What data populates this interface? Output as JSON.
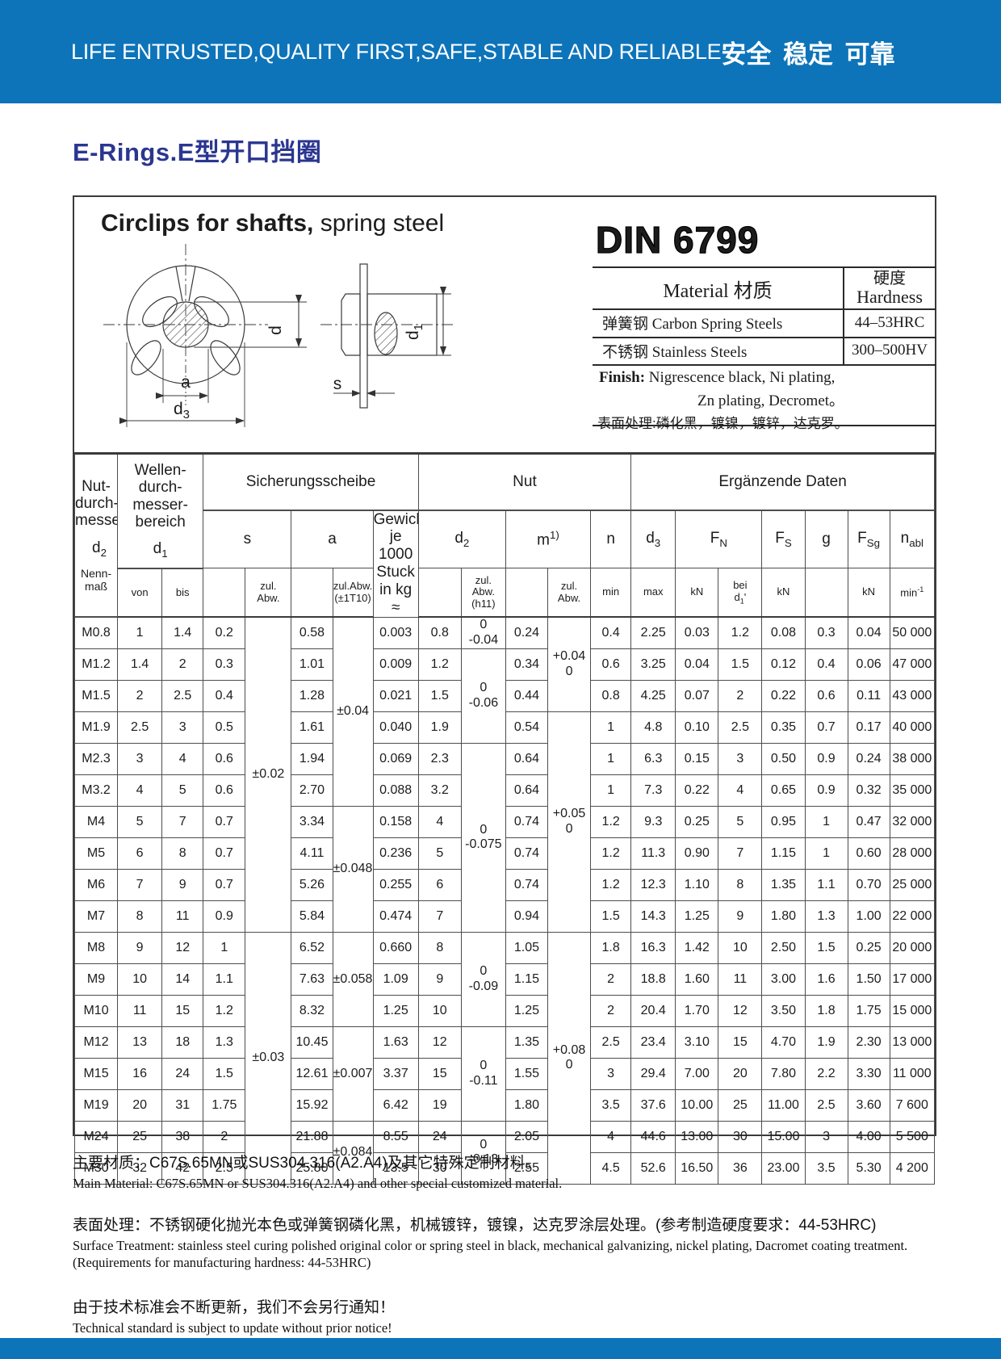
{
  "banner": {
    "slogan_en": "LIFE ENTRUSTED,QUALITY FIRST,SAFE,STABLE AND RELIABLE",
    "slogan_cn": "安全  稳定  可靠"
  },
  "page_title": "E-Rings.E型开口挡圈",
  "colors": {
    "banner_blue": "#0d74ba",
    "title_blue": "#2b3690"
  },
  "panel": {
    "heading_bold": "Circlips for shafts,",
    "heading_light": " spring steel",
    "standard": "DIN 6799",
    "material": {
      "col1_header": "Material  材质",
      "col2_header_cn": "硬度",
      "col2_header_en": "Hardness",
      "rows": [
        [
          "弹簧钢  Carbon Spring  Steels",
          "44–53HRC"
        ],
        [
          "不锈钢 Stainless Steels",
          "300–500HV"
        ]
      ],
      "finish_label": "Finish:",
      "finish_line1": " Nigrescence black,   Ni plating,",
      "finish_line2": "Zn plating,   Decromet。",
      "finish_line3": "表面处理:磷化黑，镀镍，镀锌，达克罗。"
    },
    "drawing": {
      "d": "d",
      "a": "a",
      "s": "s",
      "d3_base": "d",
      "d3_sub": "3",
      "d1_base": "d",
      "d1_sub": "1"
    }
  },
  "table": {
    "col0": {
      "group": "Nut-\ndurch-\nmesser",
      "symbol": "d~2~",
      "unit": "Nenn-\nmaß"
    },
    "col12": {
      "group": "Wellen-\ndurch-\nmesser-\nbereich",
      "symbol": "d~1~"
    },
    "groups": [
      "Sicherungsscheibe",
      "Nut",
      "Ergänzende Daten"
    ],
    "symbols": [
      "s",
      "a",
      "Gewicht\nje  1000\nStuck\nin kg\n≈",
      "d~2~",
      "m^1)^",
      "n",
      "d~3~",
      "F~N~",
      "F~S~",
      "g",
      "F~Sg~",
      "n~abl~"
    ],
    "units": [
      "von",
      "bis",
      "",
      "zul.\nAbw.",
      "",
      "zul.Abw.\n(±1T10)",
      "",
      "zul.\nAbw.\n(h11)",
      "",
      "zul.\nAbw.",
      "min",
      "max",
      "kN",
      "bei\nd~1~'",
      "kN",
      "",
      "kN",
      "min^-1^"
    ],
    "rows": [
      [
        "M0.8",
        "1",
        "1.4",
        "0.2",
        "±0.02",
        "0.58",
        "±0.04",
        "0.003",
        "0.8",
        "0\n-0.04",
        "0.24",
        "+0.04\n0",
        "0.4",
        "2.25",
        "0.03",
        "1.2",
        "0.08",
        "0.3",
        "0.04",
        "50 000"
      ],
      [
        "M1.2",
        "1.4",
        "2",
        "0.3",
        null,
        "1.01",
        null,
        "0.009",
        "1.2",
        "0\n-0.06",
        "0.34",
        null,
        "0.6",
        "3.25",
        "0.04",
        "1.5",
        "0.12",
        "0.4",
        "0.06",
        "47 000"
      ],
      [
        "M1.5",
        "2",
        "2.5",
        "0.4",
        null,
        "1.28",
        null,
        "0.021",
        "1.5",
        null,
        "0.44",
        null,
        "0.8",
        "4.25",
        "0.07",
        "2",
        "0.22",
        "0.6",
        "0.11",
        "43 000"
      ],
      [
        "M1.9",
        "2.5",
        "3",
        "0.5",
        null,
        "1.61",
        null,
        "0.040",
        "1.9",
        null,
        "0.54",
        "+0.05\n0",
        "1",
        "4.8",
        "0.10",
        "2.5",
        "0.35",
        "0.7",
        "0.17",
        "40 000"
      ],
      [
        "M2.3",
        "3",
        "4",
        "0.6",
        null,
        "1.94",
        null,
        "0.069",
        "2.3",
        "0\n-0.075",
        "0.64",
        null,
        "1",
        "6.3",
        "0.15",
        "3",
        "0.50",
        "0.9",
        "0.24",
        "38 000"
      ],
      [
        "M3.2",
        "4",
        "5",
        "0.6",
        null,
        "2.70",
        null,
        "0.088",
        "3.2",
        null,
        "0.64",
        null,
        "1",
        "7.3",
        "0.22",
        "4",
        "0.65",
        "0.9",
        "0.32",
        "35 000"
      ],
      [
        "M4",
        "5",
        "7",
        "0.7",
        null,
        "3.34",
        "±0.048",
        "0.158",
        "4",
        null,
        "0.74",
        null,
        "1.2",
        "9.3",
        "0.25",
        "5",
        "0.95",
        "1",
        "0.47",
        "32 000"
      ],
      [
        "M5",
        "6",
        "8",
        "0.7",
        null,
        "4.11",
        null,
        "0.236",
        "5",
        null,
        "0.74",
        null,
        "1.2",
        "11.3",
        "0.90",
        "7",
        "1.15",
        "1",
        "0.60",
        "28 000"
      ],
      [
        "M6",
        "7",
        "9",
        "0.7",
        null,
        "5.26",
        null,
        "0.255",
        "6",
        null,
        "0.74",
        null,
        "1.2",
        "12.3",
        "1.10",
        "8",
        "1.35",
        "1.1",
        "0.70",
        "25 000"
      ],
      [
        "M7",
        "8",
        "11",
        "0.9",
        null,
        "5.84",
        null,
        "0.474",
        "7",
        null,
        "0.94",
        null,
        "1.5",
        "14.3",
        "1.25",
        "9",
        "1.80",
        "1.3",
        "1.00",
        "22 000"
      ],
      [
        "M8",
        "9",
        "12",
        "1",
        "±0.03",
        "6.52",
        "±0.058",
        "0.660",
        "8",
        "0\n-0.09",
        "1.05",
        "+0.08\n0",
        "1.8",
        "16.3",
        "1.42",
        "10",
        "2.50",
        "1.5",
        "0.25",
        "20 000"
      ],
      [
        "M9",
        "10",
        "14",
        "1.1",
        null,
        "7.63",
        null,
        "1.09",
        "9",
        null,
        "1.15",
        null,
        "2",
        "18.8",
        "1.60",
        "11",
        "3.00",
        "1.6",
        "1.50",
        "17 000"
      ],
      [
        "M10",
        "11",
        "15",
        "1.2",
        null,
        "8.32",
        null,
        "1.25",
        "10",
        null,
        "1.25",
        null,
        "2",
        "20.4",
        "1.70",
        "12",
        "3.50",
        "1.8",
        "1.75",
        "15 000"
      ],
      [
        "M12",
        "13",
        "18",
        "1.3",
        null,
        "10.45",
        "±0.007",
        "1.63",
        "12",
        "0\n-0.11",
        "1.35",
        null,
        "2.5",
        "23.4",
        "3.10",
        "15",
        "4.70",
        "1.9",
        "2.30",
        "13 000"
      ],
      [
        "M15",
        "16",
        "24",
        "1.5",
        null,
        "12.61",
        null,
        "3.37",
        "15",
        null,
        "1.55",
        null,
        "3",
        "29.4",
        "7.00",
        "20",
        "7.80",
        "2.2",
        "3.30",
        "11 000"
      ],
      [
        "M19",
        "20",
        "31",
        "1.75",
        null,
        "15.92",
        null,
        "6.42",
        "19",
        null,
        "1.80",
        null,
        "3.5",
        "37.6",
        "10.00",
        "25",
        "11.00",
        "2.5",
        "3.60",
        "7 600"
      ],
      [
        "M24",
        "25",
        "38",
        "2",
        null,
        "21.88",
        "±0.084",
        "8.55",
        "24",
        "0\n-0.13",
        "2.05",
        null,
        "4",
        "44.6",
        "13.00",
        "30",
        "15.00",
        "3",
        "4.00",
        "5 500"
      ],
      [
        "M30",
        "32",
        "42",
        "2.5",
        null,
        "25.80",
        null,
        "13.5",
        "30",
        null,
        "2.55",
        null,
        "4.5",
        "52.6",
        "16.50",
        "36",
        "23.00",
        "3.5",
        "5.30",
        "4 200"
      ]
    ],
    "spans": {
      "0,4": 10,
      "10,4": 8,
      "0,6": 6,
      "6,6": 4,
      "10,6": 3,
      "13,6": 3,
      "16,6": 2,
      "1,9": 3,
      "4,9": 6,
      "10,9": 3,
      "13,9": 3,
      "16,9": 2,
      "0,11": 3,
      "3,11": 7,
      "10,11": 8
    }
  },
  "notes": [
    {
      "cn": "主要材质：C67S.65MN或SUS304.316(A2.A4)及其它特殊定制材料。",
      "en": [
        "Main Material: C67S.65MN or SUS304.316(A2.A4) and other special customized material."
      ]
    },
    {
      "cn": "表面处理：不锈钢硬化抛光本色或弹簧钢磷化黑，机械镀锌，镀镍，达克罗涂层处理。(参考制造硬度要求：44-53HRC)",
      "en": [
        "Surface Treatment: stainless steel curing polished original color or spring steel in black, mechanical galvanizing, nickel plating, Dacromet coating treatment.",
        "(Requirements for manufacturing hardness: 44-53HRC)"
      ]
    },
    {
      "cn": "由于技术标准会不断更新，我们不会另行通知！",
      "en": [
        "Technical standard is subject to update without prior notice!"
      ]
    }
  ]
}
